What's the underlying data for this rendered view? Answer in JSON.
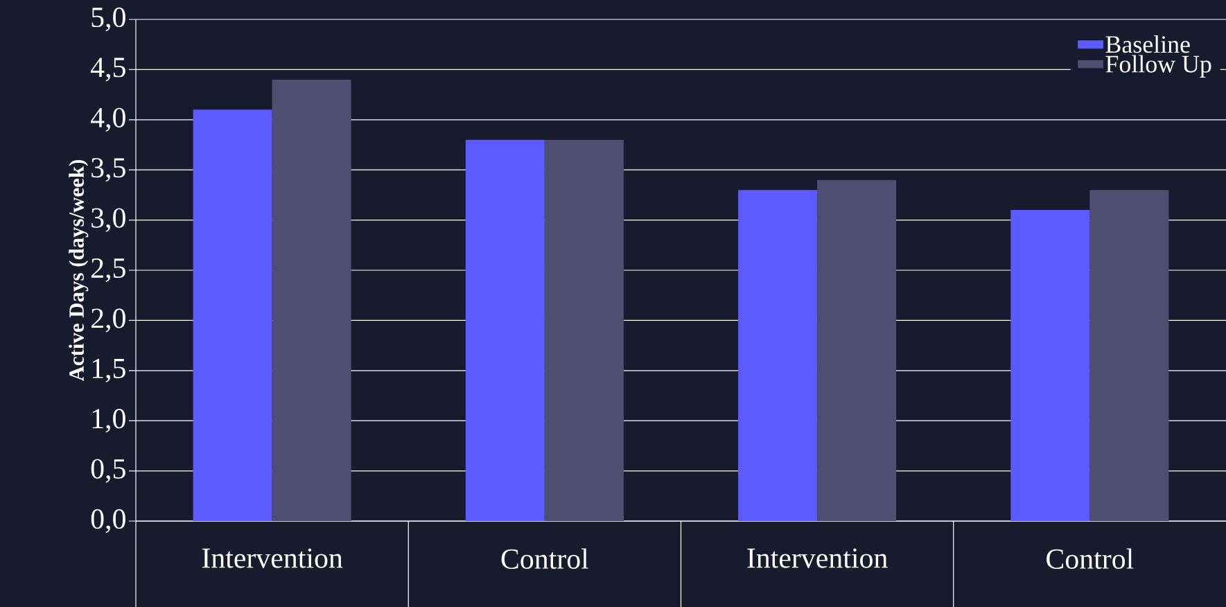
{
  "chart_data": {
    "type": "bar",
    "ylabel": "Active Days (days/week)",
    "categories": [
      "Intervention",
      "Control",
      "Intervention",
      "Control"
    ],
    "series": [
      {
        "name": "Baseline",
        "color": "#5b5bff",
        "values": [
          4.1,
          3.8,
          3.3,
          3.1
        ]
      },
      {
        "name": "Follow Up",
        "color": "#4d4e72",
        "values": [
          4.4,
          3.8,
          3.4,
          3.3
        ]
      }
    ],
    "ylim": [
      0,
      5
    ],
    "yticks": [
      {
        "value": 0,
        "label": "0,0"
      },
      {
        "value": 0.5,
        "label": "0,5"
      },
      {
        "value": 1,
        "label": "1,0"
      },
      {
        "value": 1.5,
        "label": "1,5"
      },
      {
        "value": 2,
        "label": "2,0"
      },
      {
        "value": 2.5,
        "label": "2,5"
      },
      {
        "value": 3,
        "label": "3,0"
      },
      {
        "value": 3.5,
        "label": "3,5"
      },
      {
        "value": 4,
        "label": "4,0"
      },
      {
        "value": 4.5,
        "label": "4,5"
      },
      {
        "value": 5,
        "label": "5,0"
      }
    ],
    "grid": "y",
    "legend": "top right"
  }
}
